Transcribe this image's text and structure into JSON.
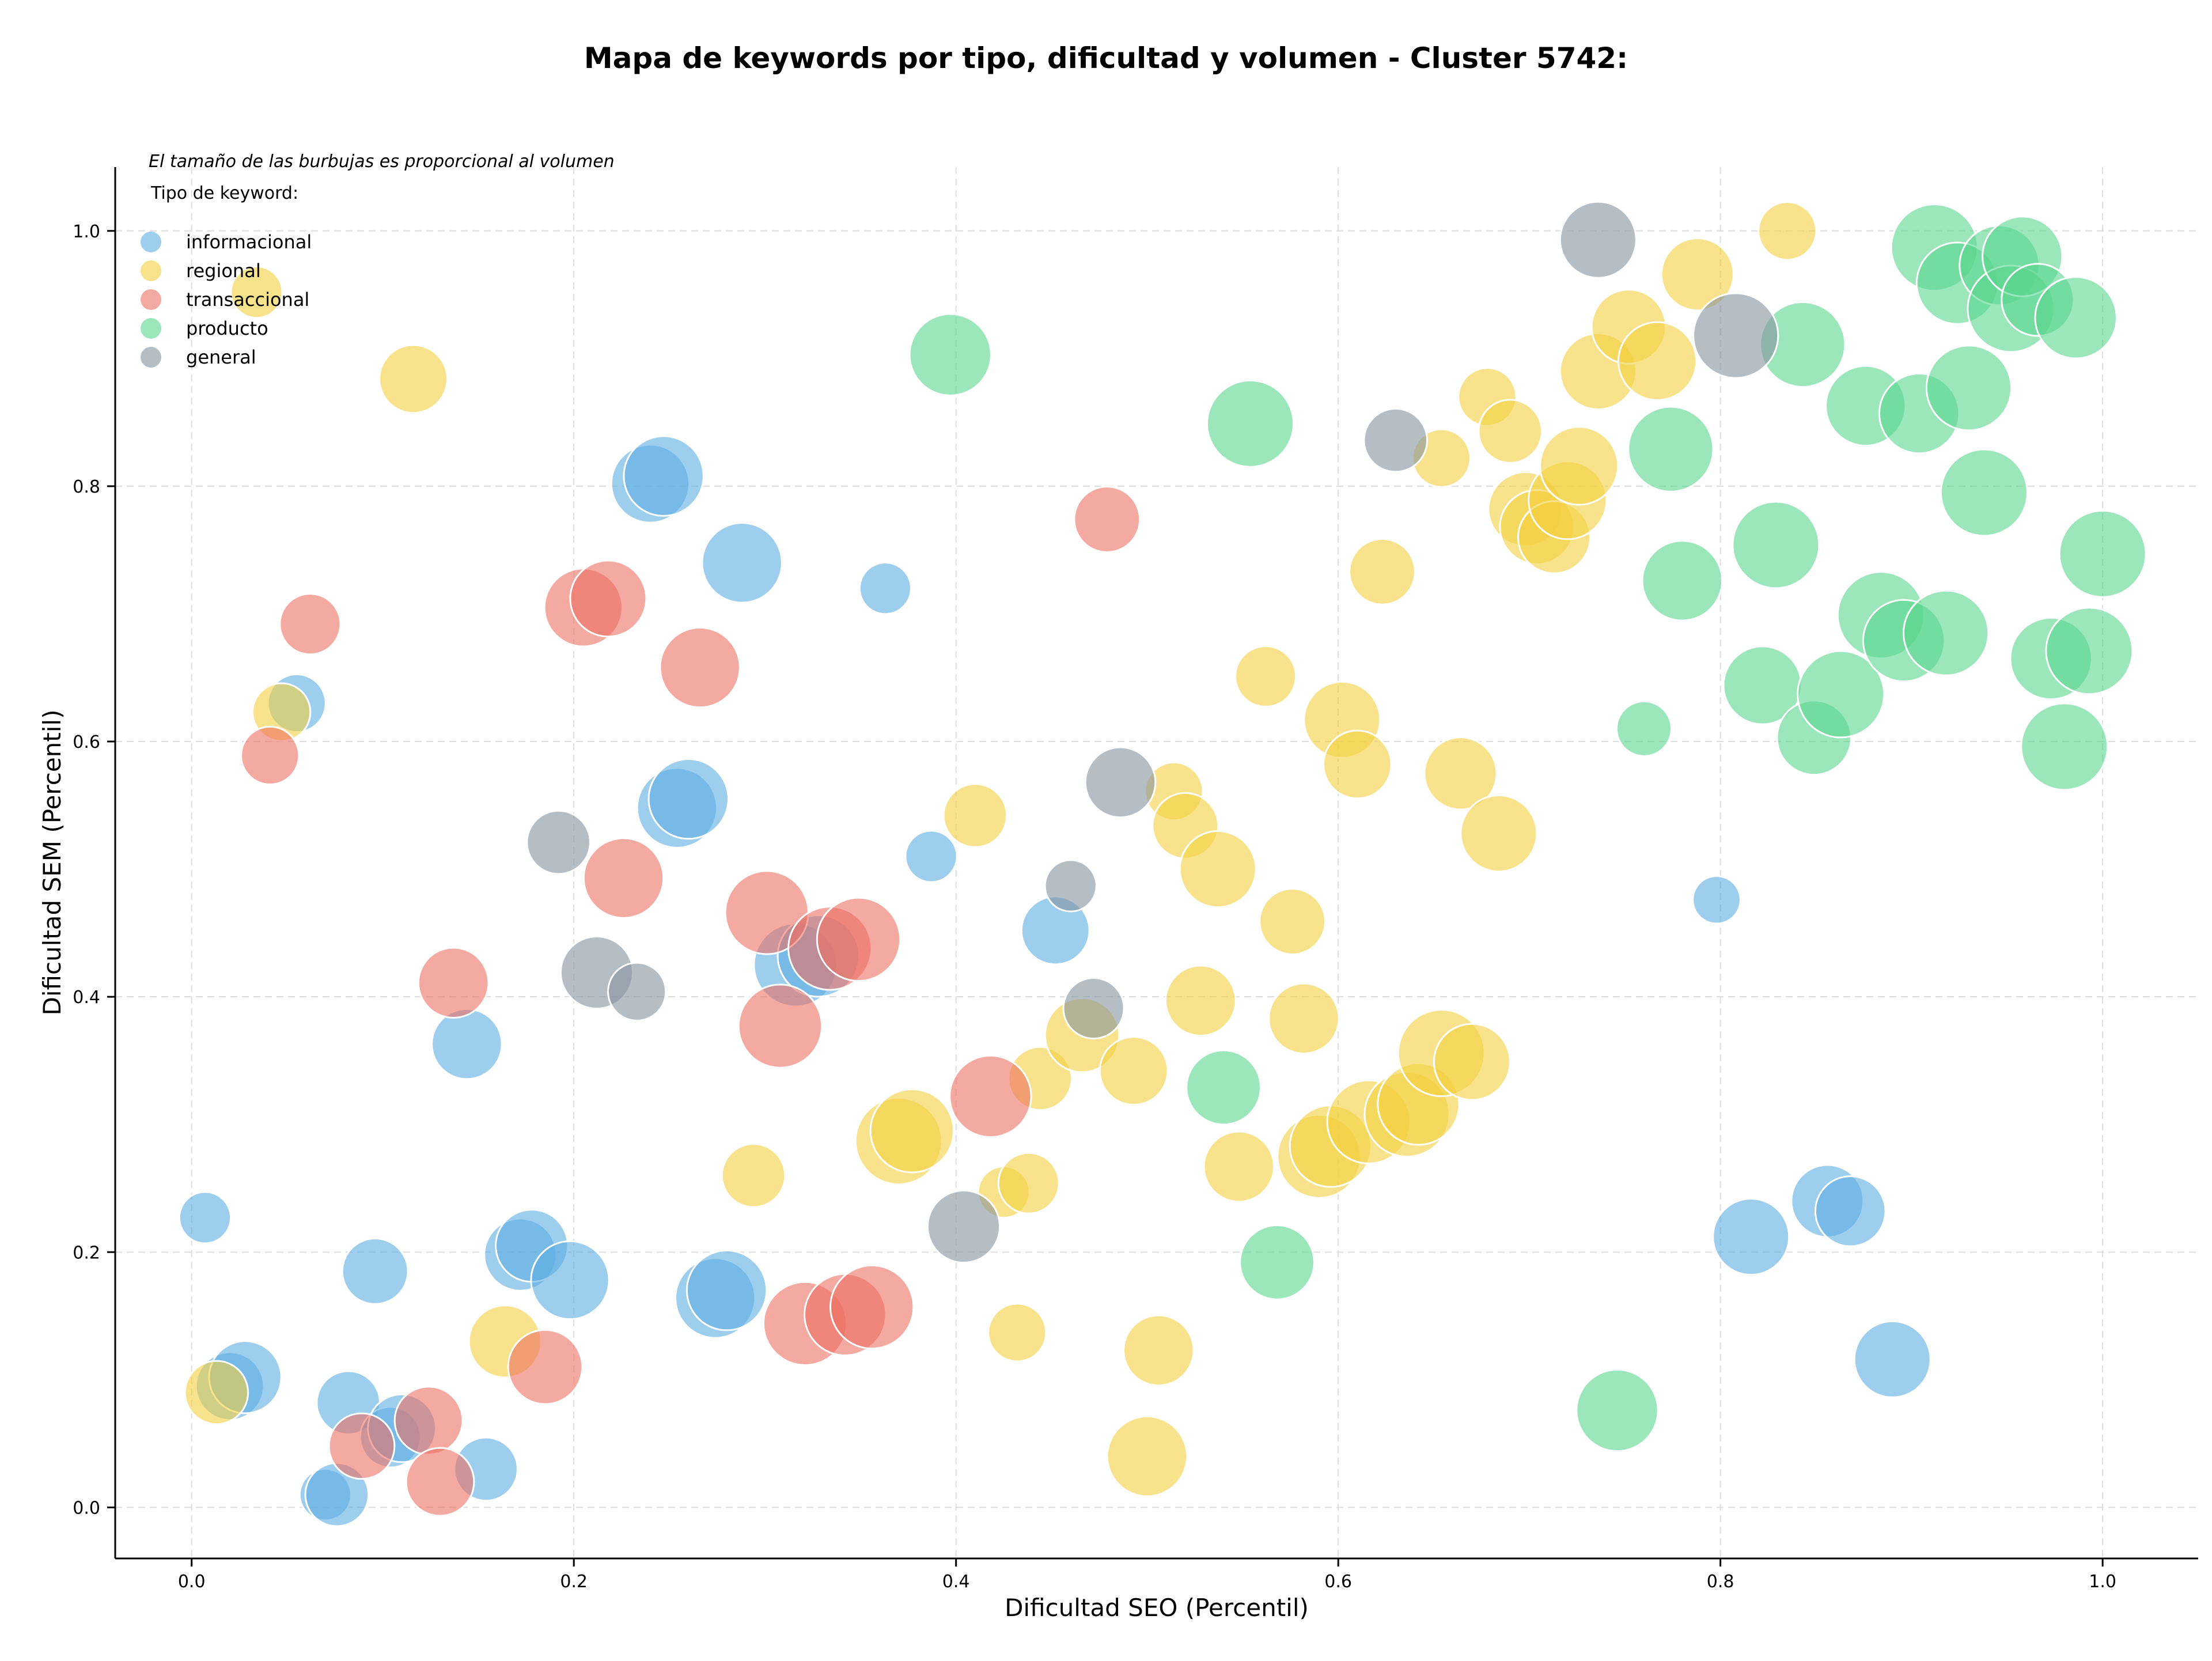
{
  "chart_data": {
    "type": "scatter",
    "title": "Mapa de keywords por tipo, dificultad y volumen - Cluster 5742:",
    "xlabel": "Dificultad SEO (Percentil)",
    "ylabel": "Dificultad SEM (Percentil)",
    "xlim": [
      -0.04,
      1.05
    ],
    "ylim": [
      -0.04,
      1.05
    ],
    "xticks": [
      0.0,
      0.2,
      0.4,
      0.6,
      0.8,
      1.0
    ],
    "yticks": [
      0.0,
      0.2,
      0.4,
      0.6,
      0.8,
      1.0
    ],
    "xtick_labels": [
      "0.0",
      "0.2",
      "0.4",
      "0.6",
      "0.8",
      "1.0"
    ],
    "ytick_labels": [
      "0.0",
      "0.2",
      "0.4",
      "0.6",
      "0.8",
      "1.0"
    ],
    "grid": true,
    "legend_position": "top-left",
    "annotation": "El tamaño de las burbujas es proporcional al volumen",
    "legend_title": "Tipo de keyword:",
    "size_note": "bubble size proportional to volume (relative 0-1)",
    "series": [
      {
        "name": "informacional",
        "color": "#5dade2",
        "points": [
          [
            0.007,
            0.227,
            0.2
          ],
          [
            0.055,
            0.63,
            0.3
          ],
          [
            0.07,
            0.01,
            0.2
          ],
          [
            0.076,
            0.01,
            0.4
          ],
          [
            0.02,
            0.095,
            0.5
          ],
          [
            0.028,
            0.102,
            0.6
          ],
          [
            0.082,
            0.082,
            0.4
          ],
          [
            0.096,
            0.185,
            0.45
          ],
          [
            0.104,
            0.055,
            0.35
          ],
          [
            0.11,
            0.062,
            0.5
          ],
          [
            0.144,
            0.363,
            0.55
          ],
          [
            0.154,
            0.03,
            0.4
          ],
          [
            0.172,
            0.198,
            0.6
          ],
          [
            0.178,
            0.205,
            0.6
          ],
          [
            0.198,
            0.178,
            0.75
          ],
          [
            0.24,
            0.802,
            0.75
          ],
          [
            0.247,
            0.808,
            0.8
          ],
          [
            0.254,
            0.548,
            0.8
          ],
          [
            0.26,
            0.555,
            0.8
          ],
          [
            0.274,
            0.164,
            0.8
          ],
          [
            0.28,
            0.17,
            0.8
          ],
          [
            0.288,
            0.74,
            0.8
          ],
          [
            0.316,
            0.425,
            0.9
          ],
          [
            0.328,
            0.432,
            0.85
          ],
          [
            0.363,
            0.72,
            0.2
          ],
          [
            0.387,
            0.51,
            0.2
          ],
          [
            0.452,
            0.452,
            0.5
          ],
          [
            0.798,
            0.476,
            0.15
          ],
          [
            0.816,
            0.212,
            0.7
          ],
          [
            0.856,
            0.24,
            0.6
          ],
          [
            0.868,
            0.232,
            0.55
          ],
          [
            0.89,
            0.116,
            0.7
          ]
        ]
      },
      {
        "name": "regional",
        "color": "#f4d03f",
        "points": [
          [
            0.013,
            0.09,
            0.4
          ],
          [
            0.034,
            0.952,
            0.2
          ],
          [
            0.047,
            0.623,
            0.3
          ],
          [
            0.116,
            0.884,
            0.5
          ],
          [
            0.164,
            0.13,
            0.6
          ],
          [
            0.294,
            0.26,
            0.4
          ],
          [
            0.37,
            0.287,
            1.0
          ],
          [
            0.377,
            0.295,
            0.9
          ],
          [
            0.41,
            0.542,
            0.4
          ],
          [
            0.425,
            0.247,
            0.2
          ],
          [
            0.432,
            0.137,
            0.3
          ],
          [
            0.438,
            0.254,
            0.35
          ],
          [
            0.444,
            0.336,
            0.4
          ],
          [
            0.466,
            0.37,
            0.65
          ],
          [
            0.493,
            0.342,
            0.5
          ],
          [
            0.5,
            0.04,
            0.8
          ],
          [
            0.506,
            0.123,
            0.55
          ],
          [
            0.514,
            0.561,
            0.3
          ],
          [
            0.52,
            0.534,
            0.45
          ],
          [
            0.528,
            0.397,
            0.55
          ],
          [
            0.537,
            0.5,
            0.7
          ],
          [
            0.548,
            0.267,
            0.55
          ],
          [
            0.562,
            0.651,
            0.35
          ],
          [
            0.576,
            0.459,
            0.45
          ],
          [
            0.582,
            0.383,
            0.55
          ],
          [
            0.59,
            0.275,
            0.9
          ],
          [
            0.596,
            0.283,
            0.85
          ],
          [
            0.602,
            0.617,
            0.7
          ],
          [
            0.61,
            0.582,
            0.5
          ],
          [
            0.616,
            0.302,
            0.9
          ],
          [
            0.623,
            0.733,
            0.45
          ],
          [
            0.636,
            0.308,
            0.95
          ],
          [
            0.642,
            0.316,
            0.85
          ],
          [
            0.654,
            0.822,
            0.3
          ],
          [
            0.654,
            0.356,
            1.0
          ],
          [
            0.664,
            0.575,
            0.6
          ],
          [
            0.67,
            0.349,
            0.7
          ],
          [
            0.678,
            0.87,
            0.3
          ],
          [
            0.684,
            0.528,
            0.7
          ],
          [
            0.69,
            0.843,
            0.4
          ],
          [
            0.698,
            0.782,
            0.65
          ],
          [
            0.704,
            0.768,
            0.65
          ],
          [
            0.713,
            0.76,
            0.6
          ],
          [
            0.72,
            0.789,
            0.75
          ],
          [
            0.726,
            0.816,
            0.75
          ],
          [
            0.736,
            0.89,
            0.7
          ],
          [
            0.752,
            0.925,
            0.65
          ],
          [
            0.767,
            0.898,
            0.75
          ],
          [
            0.788,
            0.966,
            0.6
          ],
          [
            0.835,
            1.0,
            0.3
          ]
        ]
      },
      {
        "name": "transaccional",
        "color": "#ec7063",
        "points": [
          [
            0.041,
            0.589,
            0.3
          ],
          [
            0.062,
            0.692,
            0.35
          ],
          [
            0.089,
            0.048,
            0.45
          ],
          [
            0.124,
            0.068,
            0.5
          ],
          [
            0.13,
            0.02,
            0.5
          ],
          [
            0.137,
            0.411,
            0.55
          ],
          [
            0.185,
            0.11,
            0.65
          ],
          [
            0.205,
            0.705,
            0.75
          ],
          [
            0.218,
            0.712,
            0.7
          ],
          [
            0.226,
            0.493,
            0.8
          ],
          [
            0.266,
            0.658,
            0.8
          ],
          [
            0.301,
            0.466,
            0.9
          ],
          [
            0.308,
            0.377,
            0.9
          ],
          [
            0.321,
            0.144,
            0.9
          ],
          [
            0.334,
            0.438,
            0.9
          ],
          [
            0.342,
            0.151,
            0.85
          ],
          [
            0.349,
            0.445,
            0.9
          ],
          [
            0.356,
            0.157,
            0.9
          ],
          [
            0.418,
            0.322,
            0.85
          ],
          [
            0.479,
            0.774,
            0.45
          ]
        ]
      },
      {
        "name": "producto",
        "color": "#58d68d",
        "points": [
          [
            0.397,
            0.903,
            0.85
          ],
          [
            0.54,
            0.329,
            0.65
          ],
          [
            0.554,
            0.849,
            1.0
          ],
          [
            0.568,
            0.192,
            0.65
          ],
          [
            0.746,
            0.076,
            0.85
          ],
          [
            0.76,
            0.61,
            0.25
          ],
          [
            0.774,
            0.829,
            0.95
          ],
          [
            0.78,
            0.726,
            0.8
          ],
          [
            0.822,
            0.644,
            0.75
          ],
          [
            0.829,
            0.754,
            1.0
          ],
          [
            0.843,
            0.911,
            0.95
          ],
          [
            0.849,
            0.603,
            0.65
          ],
          [
            0.863,
            0.637,
            1.0
          ],
          [
            0.876,
            0.863,
            0.8
          ],
          [
            0.884,
            0.699,
            1.0
          ],
          [
            0.896,
            0.679,
            0.85
          ],
          [
            0.904,
            0.857,
            0.8
          ],
          [
            0.912,
            0.987,
            1.0
          ],
          [
            0.918,
            0.685,
            0.95
          ],
          [
            0.924,
            0.959,
            0.85
          ],
          [
            0.93,
            0.877,
            0.95
          ],
          [
            0.938,
            0.795,
            1.0
          ],
          [
            0.946,
            0.973,
            0.8
          ],
          [
            0.952,
            0.939,
            1.0
          ],
          [
            0.958,
            0.98,
            0.8
          ],
          [
            0.966,
            0.946,
            0.6
          ],
          [
            0.973,
            0.665,
            0.85
          ],
          [
            0.98,
            0.596,
            1.0
          ],
          [
            0.986,
            0.932,
            0.85
          ],
          [
            0.993,
            0.671,
            1.0
          ],
          [
            1.0,
            0.747,
            1.0
          ]
        ]
      },
      {
        "name": "general",
        "color": "#85929e",
        "points": [
          [
            0.192,
            0.521,
            0.4
          ],
          [
            0.212,
            0.419,
            0.6
          ],
          [
            0.233,
            0.404,
            0.3
          ],
          [
            0.404,
            0.22,
            0.6
          ],
          [
            0.46,
            0.487,
            0.2
          ],
          [
            0.472,
            0.391,
            0.35
          ],
          [
            0.486,
            0.568,
            0.55
          ],
          [
            0.63,
            0.836,
            0.4
          ],
          [
            0.736,
            0.993,
            0.7
          ],
          [
            0.808,
            0.918,
            0.95
          ]
        ]
      }
    ]
  }
}
